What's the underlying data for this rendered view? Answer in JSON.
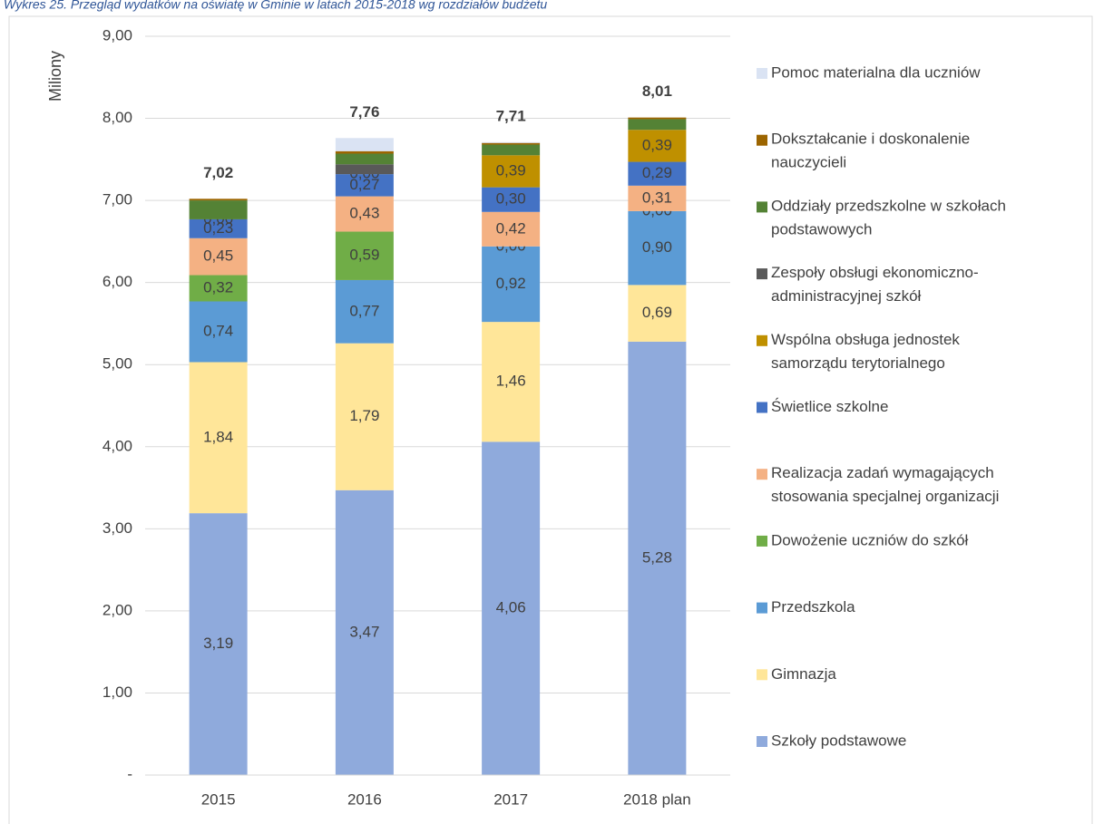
{
  "chart_data": {
    "type": "stacked_bar",
    "title": "Wykres 25. Przegląd wydatków na oświatę w Gminie w latach 2015-2018 wg rozdziałów budżetu",
    "y_label": "Miliony",
    "categories": [
      "2015",
      "2016",
      "2017",
      "2018 plan"
    ],
    "ylim": [
      0,
      9
    ],
    "yticks": [
      {
        "value": 0,
        "label": "-"
      },
      {
        "value": 1,
        "label": "1,00"
      },
      {
        "value": 2,
        "label": "2,00"
      },
      {
        "value": 3,
        "label": "3,00"
      },
      {
        "value": 4,
        "label": "4,00"
      },
      {
        "value": 5,
        "label": "5,00"
      },
      {
        "value": 6,
        "label": "6,00"
      },
      {
        "value": 7,
        "label": "7,00"
      },
      {
        "value": 8,
        "label": "8,00"
      },
      {
        "value": 9,
        "label": "9,00"
      }
    ],
    "grid": true,
    "legend": "right",
    "series": [
      {
        "name": "Szkoły podstawowe",
        "color": "#8faadc",
        "values": [
          3.19,
          3.47,
          4.06,
          5.28
        ],
        "value_labels": [
          "3,19",
          "3,47",
          "4,06",
          "5,28"
        ]
      },
      {
        "name": "Gimnazja",
        "color": "#ffe699",
        "values": [
          1.84,
          1.79,
          1.46,
          0.69
        ],
        "value_labels": [
          "1,84",
          "1,79",
          "1,46",
          "0,69"
        ]
      },
      {
        "name": "Przedszkola",
        "color": "#5b9bd5",
        "values": [
          0.74,
          0.77,
          0.92,
          0.9
        ],
        "value_labels": [
          "0,74",
          "0,77",
          "0,92",
          "0,90"
        ]
      },
      {
        "name": "Dowożenie uczniów do szkół",
        "color": "#70ad47",
        "values": [
          0.32,
          0.59,
          0,
          0
        ],
        "value_labels": [
          "0,32",
          "0,59",
          "0,00",
          "0,00"
        ]
      },
      {
        "name": "Realizacja zadań wymagających stosowania specjalnej organizacji",
        "color": "#f4b183",
        "values": [
          0.45,
          0.43,
          0.42,
          0.31
        ],
        "value_labels": [
          "0,45",
          "0,43",
          "0,42",
          "0,31"
        ]
      },
      {
        "name": "Świetlice szkolne",
        "color": "#4472c4",
        "values": [
          0.23,
          0.27,
          0.3,
          0.29
        ],
        "value_labels": [
          "0,23",
          "0,27",
          "0,30",
          "0,29"
        ]
      },
      {
        "name": "Wspólna obsługa jednostek samorządu terytorialnego",
        "color": "#bf9000",
        "values": [
          0,
          0,
          0.39,
          0.39
        ],
        "value_labels": [
          "0,00",
          "0,00",
          "0,39",
          "0,39"
        ]
      },
      {
        "name": "Zespoły obsługi ekonomiczno-administracyjnej szkół",
        "color": "#595959",
        "values": [
          0,
          0.12,
          0,
          0
        ],
        "value_labels": [
          null,
          null,
          null,
          null
        ]
      },
      {
        "name": "Oddziały przedszkolne w szkołach podstawowych",
        "color": "#548235",
        "values": [
          0.23,
          0.13,
          0.13,
          0.13
        ],
        "value_labels": [
          null,
          null,
          null,
          null
        ]
      },
      {
        "name": "Dokształcanie i doskonalenie nauczycieli",
        "color": "#9c6500",
        "values": [
          0.02,
          0.03,
          0.02,
          0.02
        ],
        "value_labels": [
          null,
          null,
          null,
          null
        ]
      },
      {
        "name": "Pomoc materialna dla uczniów",
        "color": "#dae3f3",
        "values": [
          0,
          0.16,
          0.01,
          0
        ],
        "value_labels": [
          null,
          null,
          null,
          null
        ]
      }
    ],
    "totals": [
      7.02,
      7.76,
      7.71,
      8.01
    ],
    "total_labels": [
      "7,02",
      "7,76",
      "7,71",
      "8,01"
    ]
  }
}
